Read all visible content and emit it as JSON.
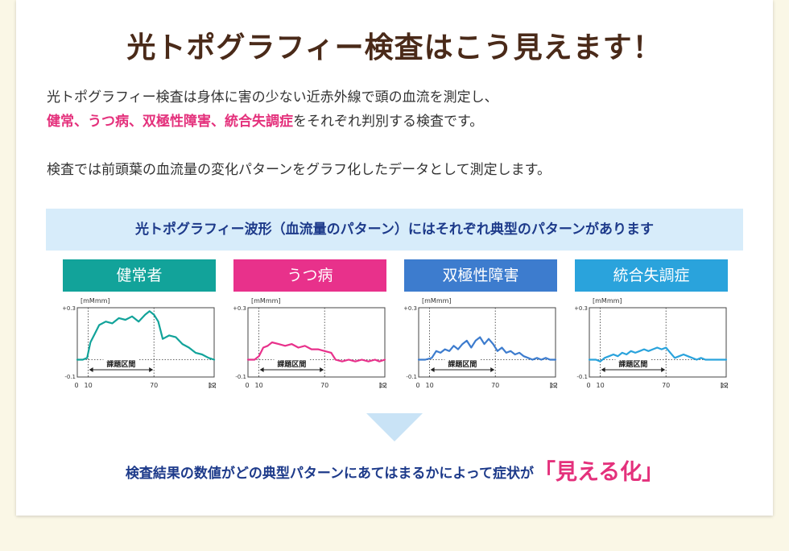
{
  "title": "光トポグラフィー検査はこう見えます！",
  "intro": {
    "line1": "光トポグラフィー検査は身体に害の少ない近赤外線で頭の血流を測定し、",
    "line2_highlight": "健常、うつ病、双極性障害、統合失調症",
    "line2_rest": "をそれぞれ判別する検査です。",
    "line3": "検査では前頭葉の血流量の変化パターンをグラフ化したデータとして測定します。"
  },
  "banner": "光トポグラフィー波形（血流量のパターン）にはそれぞれ典型のパターンがあります",
  "conclusion": {
    "text": "検査結果の数値がどの典型パターンにあてはまるかによって症状が",
    "highlight": "「見える化」"
  },
  "colors": {
    "healthy": "#12a39a",
    "depression": "#e8318b",
    "bipolar": "#3d7cce",
    "schizophrenia": "#2aa3dc",
    "title": "#4a2a19",
    "navy": "#1d3a8a"
  },
  "chart_data": [
    {
      "type": "line",
      "title": "健常者",
      "unit_label": "[mMmm]",
      "x_tick_labels": [
        "0",
        "10",
        "70",
        "125"
      ],
      "x_unit": "[S]",
      "y_tick_labels": [
        "+0.3",
        "-0.1"
      ],
      "ylim": [
        -0.1,
        0.3
      ],
      "xlim": [
        0,
        125
      ],
      "task_label": "課題区間",
      "task_interval": [
        10,
        70
      ],
      "series": [
        {
          "color": "#12a39a",
          "x": [
            0,
            5,
            9,
            12,
            16,
            20,
            26,
            32,
            38,
            44,
            50,
            56,
            62,
            66,
            70,
            74,
            78,
            84,
            90,
            96,
            102,
            108,
            114,
            120,
            125
          ],
          "y": [
            0.0,
            0.0,
            0.01,
            0.1,
            0.15,
            0.2,
            0.22,
            0.21,
            0.24,
            0.23,
            0.25,
            0.22,
            0.26,
            0.28,
            0.26,
            0.22,
            0.12,
            0.14,
            0.13,
            0.09,
            0.07,
            0.04,
            0.03,
            0.01,
            0.0
          ]
        }
      ]
    },
    {
      "type": "line",
      "title": "うつ病",
      "unit_label": "[mMmm]",
      "x_tick_labels": [
        "0",
        "10",
        "70",
        "125"
      ],
      "x_unit": "[S]",
      "y_tick_labels": [
        "+0.3",
        "-0.1"
      ],
      "ylim": [
        -0.1,
        0.3
      ],
      "xlim": [
        0,
        125
      ],
      "task_label": "課題区間",
      "task_interval": [
        10,
        70
      ],
      "series": [
        {
          "color": "#e8318b",
          "x": [
            0,
            6,
            10,
            14,
            18,
            22,
            28,
            34,
            40,
            46,
            52,
            58,
            64,
            70,
            76,
            80,
            86,
            92,
            98,
            104,
            110,
            116,
            120,
            125
          ],
          "y": [
            0.0,
            0.0,
            0.02,
            0.07,
            0.08,
            0.1,
            0.09,
            0.08,
            0.09,
            0.07,
            0.08,
            0.06,
            0.06,
            0.05,
            0.04,
            0.0,
            -0.01,
            0.0,
            -0.01,
            0.0,
            -0.01,
            0.0,
            -0.01,
            0.0
          ]
        }
      ]
    },
    {
      "type": "line",
      "title": "双極性障害",
      "unit_label": "[mMmm]",
      "x_tick_labels": [
        "0",
        "10",
        "70",
        "125"
      ],
      "x_unit": "[S]",
      "y_tick_labels": [
        "+0.3",
        "-0.1"
      ],
      "ylim": [
        -0.1,
        0.3
      ],
      "xlim": [
        0,
        125
      ],
      "task_label": "課題区間",
      "task_interval": [
        10,
        70
      ],
      "series": [
        {
          "color": "#3d7cce",
          "x": [
            0,
            6,
            12,
            16,
            20,
            24,
            28,
            32,
            36,
            40,
            44,
            48,
            52,
            56,
            60,
            64,
            68,
            72,
            76,
            80,
            84,
            88,
            92,
            96,
            100,
            104,
            108,
            112,
            116,
            120,
            125
          ],
          "y": [
            0.0,
            0.0,
            0.01,
            0.05,
            0.04,
            0.06,
            0.05,
            0.08,
            0.06,
            0.09,
            0.11,
            0.07,
            0.11,
            0.13,
            0.09,
            0.12,
            0.09,
            0.05,
            0.07,
            0.04,
            0.05,
            0.03,
            0.04,
            0.02,
            0.01,
            0.0,
            0.01,
            0.0,
            0.01,
            0.0,
            0.0
          ]
        }
      ]
    },
    {
      "type": "line",
      "title": "統合失調症",
      "unit_label": "[mMmm]",
      "x_tick_labels": [
        "0",
        "10",
        "70",
        "125"
      ],
      "x_unit": "[S]",
      "y_tick_labels": [
        "+0.3",
        "-0.1"
      ],
      "ylim": [
        -0.1,
        0.3
      ],
      "xlim": [
        0,
        125
      ],
      "task_label": "課題区間",
      "task_interval": [
        10,
        70
      ],
      "series": [
        {
          "color": "#2aa3dc",
          "x": [
            0,
            6,
            10,
            14,
            18,
            22,
            26,
            30,
            34,
            38,
            42,
            46,
            50,
            54,
            58,
            62,
            66,
            70,
            74,
            78,
            82,
            86,
            90,
            94,
            98,
            102,
            106,
            112,
            118,
            125
          ],
          "y": [
            0.0,
            0.0,
            -0.01,
            0.01,
            0.02,
            0.03,
            0.02,
            0.04,
            0.03,
            0.05,
            0.04,
            0.05,
            0.06,
            0.05,
            0.06,
            0.07,
            0.06,
            0.07,
            0.04,
            0.01,
            0.02,
            0.03,
            0.02,
            0.01,
            0.0,
            0.01,
            0.0,
            0.0,
            0.0,
            0.0
          ]
        }
      ]
    }
  ]
}
